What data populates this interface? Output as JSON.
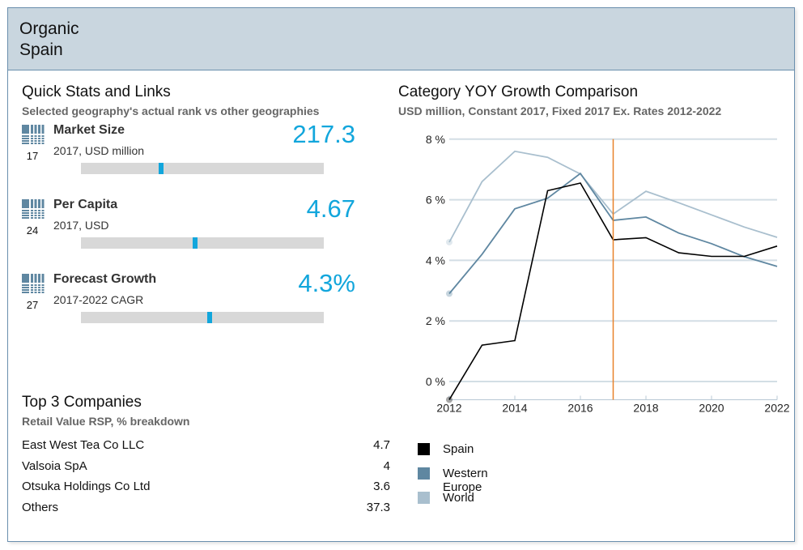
{
  "header": {
    "category": "Organic",
    "geography": "Spain"
  },
  "quick_stats": {
    "title": "Quick Stats and Links",
    "subtitle": "Selected geography's actual rank vs other geographies",
    "items": [
      {
        "label": "Market Size",
        "sub": "2017, USD million",
        "value": "217.3",
        "rank": "17",
        "rank_position_pct": 33,
        "icon": "rank-grid-icon"
      },
      {
        "label": "Per Capita",
        "sub": "2017, USD",
        "value": "4.67",
        "rank": "24",
        "rank_position_pct": 47,
        "icon": "rank-grid-icon"
      },
      {
        "label": "Forecast Growth",
        "sub": "2017-2022 CAGR",
        "value": "4.3%",
        "rank": "27",
        "rank_position_pct": 53,
        "icon": "rank-grid-icon"
      }
    ],
    "accent_color": "#12a6dc"
  },
  "top_companies": {
    "title": "Top 3 Companies",
    "subtitle": "Retail Value RSP, % breakdown",
    "rows": [
      {
        "name": "East West Tea Co LLC",
        "value": "4.7"
      },
      {
        "name": "Valsoia SpA",
        "value": "4"
      },
      {
        "name": "Otsuka Holdings Co Ltd",
        "value": "3.6"
      },
      {
        "name": "Others",
        "value": "37.3"
      }
    ]
  },
  "chart_panel": {
    "title": "Category YOY Growth Comparison",
    "subtitle": "USD million, Constant 2017, Fixed 2017 Ex. Rates 2012-2022"
  },
  "chart_data": {
    "type": "line",
    "title": "Category YOY Growth Comparison",
    "subtitle": "USD million, Constant 2017, Fixed 2017 Ex. Rates 2012-2022",
    "xlabel": "",
    "ylabel": "",
    "x": [
      2012,
      2013,
      2014,
      2015,
      2016,
      2017,
      2018,
      2019,
      2020,
      2021,
      2022
    ],
    "x_ticks": [
      "2012",
      "2014",
      "2016",
      "2018",
      "2020",
      "2022"
    ],
    "y_ticks": [
      "0 %",
      "2 %",
      "4 %",
      "6 %",
      "8 %"
    ],
    "y_tick_values": [
      0,
      2,
      4,
      6,
      8
    ],
    "ylim": [
      -0.6,
      8
    ],
    "xlim": [
      2012,
      2022
    ],
    "grid": true,
    "reference_line": {
      "x": 2017,
      "color": "#e8822a"
    },
    "series": [
      {
        "name": "Spain",
        "color": "#000000",
        "values": [
          -0.6,
          1.2,
          1.35,
          6.3,
          6.55,
          4.68,
          4.75,
          4.25,
          4.13,
          4.13,
          4.47
        ]
      },
      {
        "name": "Western Europe",
        "color": "#5f87a1",
        "values": [
          2.9,
          4.2,
          5.7,
          6.05,
          6.87,
          5.32,
          5.43,
          4.9,
          4.55,
          4.12,
          3.8
        ]
      },
      {
        "name": "World",
        "color": "#a9bfce",
        "values": [
          4.6,
          6.6,
          7.6,
          7.4,
          6.85,
          5.53,
          6.28,
          5.9,
          5.5,
          5.1,
          4.76
        ]
      }
    ],
    "legend_position": "bottom-left"
  }
}
